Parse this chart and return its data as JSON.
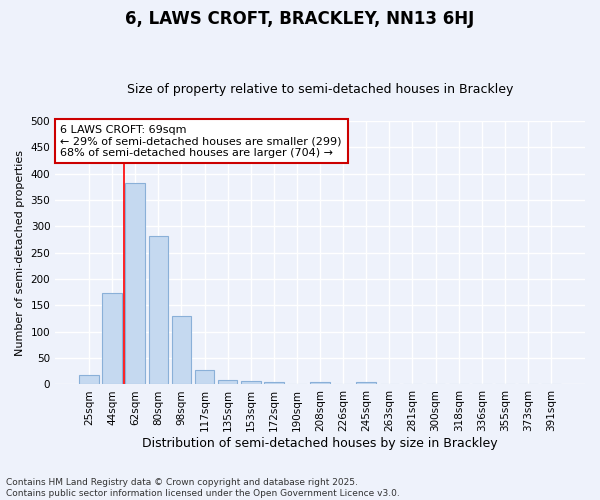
{
  "title": "6, LAWS CROFT, BRACKLEY, NN13 6HJ",
  "subtitle": "Size of property relative to semi-detached houses in Brackley",
  "xlabel": "Distribution of semi-detached houses by size in Brackley",
  "ylabel": "Number of semi-detached properties",
  "categories": [
    "25sqm",
    "44sqm",
    "62sqm",
    "80sqm",
    "98sqm",
    "117sqm",
    "135sqm",
    "153sqm",
    "172sqm",
    "190sqm",
    "208sqm",
    "226sqm",
    "245sqm",
    "263sqm",
    "281sqm",
    "300sqm",
    "318sqm",
    "336sqm",
    "355sqm",
    "373sqm",
    "391sqm"
  ],
  "values": [
    18,
    173,
    382,
    282,
    130,
    28,
    8,
    7,
    5,
    0,
    5,
    0,
    5,
    0,
    0,
    0,
    0,
    0,
    0,
    0,
    0
  ],
  "bar_color": "#c5d9f0",
  "bar_edgecolor": "#8ab0d8",
  "red_line_x": 2,
  "annotation_title": "6 LAWS CROFT: 69sqm",
  "annotation_line1": "← 29% of semi-detached houses are smaller (299)",
  "annotation_line2": "68% of semi-detached houses are larger (704) →",
  "annotation_box_facecolor": "#ffffff",
  "annotation_box_edgecolor": "#cc0000",
  "ylim": [
    0,
    500
  ],
  "yticks": [
    0,
    50,
    100,
    150,
    200,
    250,
    300,
    350,
    400,
    450,
    500
  ],
  "footer": "Contains HM Land Registry data © Crown copyright and database right 2025.\nContains public sector information licensed under the Open Government Licence v3.0.",
  "bg_color": "#eef2fb",
  "grid_color": "#ffffff",
  "title_fontsize": 12,
  "subtitle_fontsize": 9,
  "tick_fontsize": 7.5,
  "ylabel_fontsize": 8,
  "xlabel_fontsize": 9,
  "footer_fontsize": 6.5
}
